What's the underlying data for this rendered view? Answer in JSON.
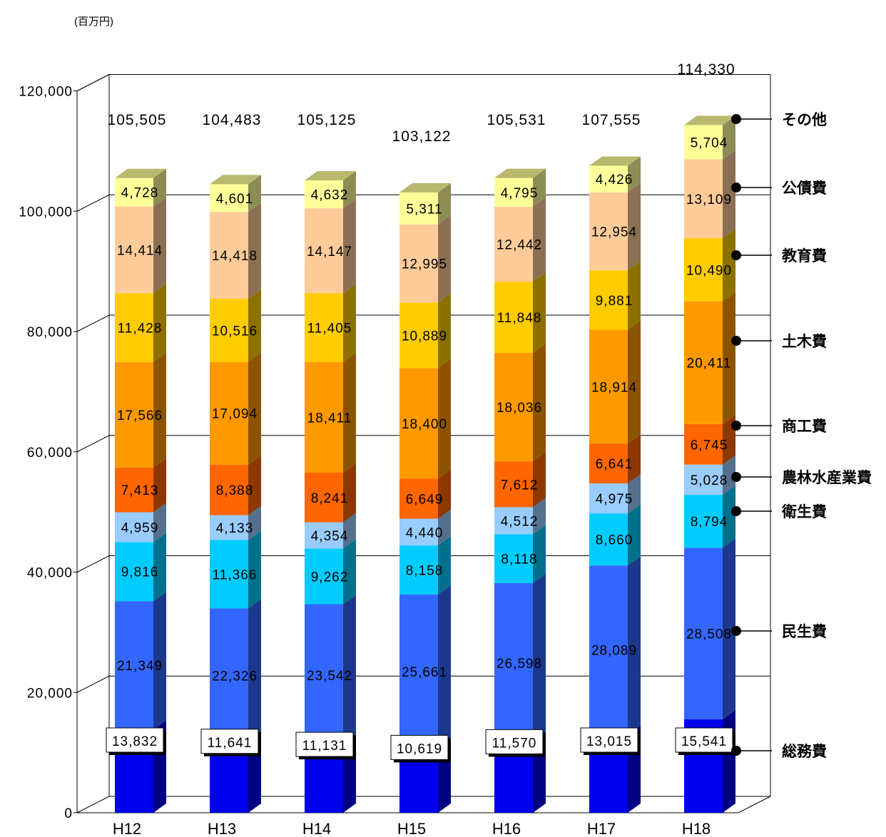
{
  "chart_data": {
    "type": "bar",
    "stacked": true,
    "three_d": true,
    "unit_label": "(百万円)",
    "categories": [
      "H12",
      "H13",
      "H14",
      "H15",
      "H16",
      "H17",
      "H18"
    ],
    "totals": [
      "105,505",
      "104,483",
      "105,125",
      "103,122",
      "105,531",
      "107,555",
      "114,330"
    ],
    "ylim": [
      0,
      120000
    ],
    "yticks": [
      0,
      20000,
      40000,
      60000,
      80000,
      100000,
      120000
    ],
    "ytick_labels": [
      "0",
      "20,000",
      "40,000",
      "60,000",
      "80,000",
      "100,000",
      "120,000"
    ],
    "grid": true,
    "legend_placement": "right",
    "series": [
      {
        "name": "総務費",
        "values": [
          13832,
          11641,
          11131,
          10619,
          11570,
          13015,
          15541
        ],
        "labels": [
          "13,832",
          "11,641",
          "11,131",
          "10,619",
          "11,570",
          "13,015",
          "15,541"
        ],
        "color": "#0000ee"
      },
      {
        "name": "民生費",
        "values": [
          21349,
          22326,
          23542,
          25661,
          26598,
          28089,
          28508
        ],
        "labels": [
          "21,349",
          "22,326",
          "23,542",
          "25,661",
          "26,598",
          "28,089",
          "28,508"
        ],
        "color": "#3366ff"
      },
      {
        "name": "衛生費",
        "values": [
          9816,
          11366,
          9262,
          8158,
          8118,
          8660,
          8794
        ],
        "labels": [
          "9,816",
          "11,366",
          "9,262",
          "8,158",
          "8,118",
          "8,660",
          "8,794"
        ],
        "color": "#00ccff"
      },
      {
        "name": "農林水産業費",
        "values": [
          4959,
          4133,
          4354,
          4440,
          4512,
          4975,
          5028
        ],
        "labels": [
          "4,959",
          "4,133",
          "4,354",
          "4,440",
          "4,512",
          "4,975",
          "5,028"
        ],
        "color": "#99ccff"
      },
      {
        "name": "商工費",
        "values": [
          7413,
          8388,
          8241,
          6649,
          7612,
          6641,
          6745
        ],
        "labels": [
          "7,413",
          "8,388",
          "8,241",
          "6,649",
          "7,612",
          "6,641",
          "6,745"
        ],
        "color": "#ff6600"
      },
      {
        "name": "土木費",
        "values": [
          17566,
          17094,
          18411,
          18400,
          18036,
          18914,
          20411
        ],
        "labels": [
          "17,566",
          "17,094",
          "18,411",
          "18,400",
          "18,036",
          "18,914",
          "20,411"
        ],
        "color": "#ff9900"
      },
      {
        "name": "教育費",
        "values": [
          11428,
          10516,
          11405,
          10889,
          11848,
          9881,
          10490
        ],
        "labels": [
          "11,428",
          "10,516",
          "11,405",
          "10,889",
          "11,848",
          "9,881",
          "10,490"
        ],
        "color": "#ffcc00"
      },
      {
        "name": "公債費",
        "values": [
          14414,
          14418,
          14147,
          12995,
          12442,
          12954,
          13109
        ],
        "labels": [
          "14,414",
          "14,418",
          "14,147",
          "12,995",
          "12,442",
          "12,954",
          "13,109"
        ],
        "color": "#ffcc99"
      },
      {
        "name": "その他",
        "values": [
          4728,
          4601,
          4632,
          5311,
          4795,
          4426,
          5704
        ],
        "labels": [
          "4,728",
          "4,601",
          "4,632",
          "5,311",
          "4,795",
          "4,426",
          "5,704"
        ],
        "color": "#ffff99"
      }
    ]
  }
}
